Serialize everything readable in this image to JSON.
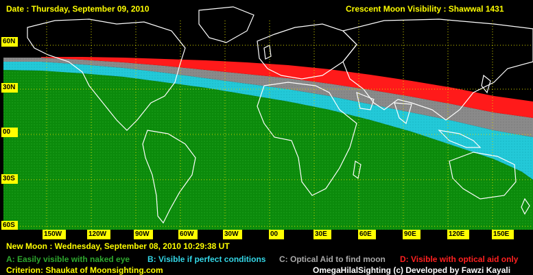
{
  "header": {
    "date": "Date : Thursday, September 09, 2010",
    "title": "Crescent Moon Visibility : Shawwal  1431"
  },
  "axes": {
    "lat_labels": [
      "60N",
      "30N",
      "00",
      "30S",
      "60S"
    ],
    "lon_labels": [
      "150W",
      "120W",
      "90W",
      "60W",
      "30W",
      "00",
      "30E",
      "60E",
      "90E",
      "120E",
      "150E"
    ]
  },
  "new_moon": "New Moon : Wednesday, September 08, 2010  10:29:38  UT",
  "legend": {
    "a": "A: Easily visible with naked eye",
    "b": "B: Visible if perfect conditions",
    "c": "C: Optical Aid to find moon",
    "d": "D: Visible with optical aid only"
  },
  "colors": {
    "zone_a": "#0b8a0b",
    "zone_b": "#23c9d8",
    "zone_c": "#8a8a8a",
    "zone_d": "#ff1a1a",
    "background": "#000000",
    "labels": "#ffff00"
  },
  "footer": {
    "criterion": "Criterion: Shaukat of Moonsighting.com",
    "credit": "OmegaHilalSighting  (c)  Developed by Fawzi Kayali"
  }
}
